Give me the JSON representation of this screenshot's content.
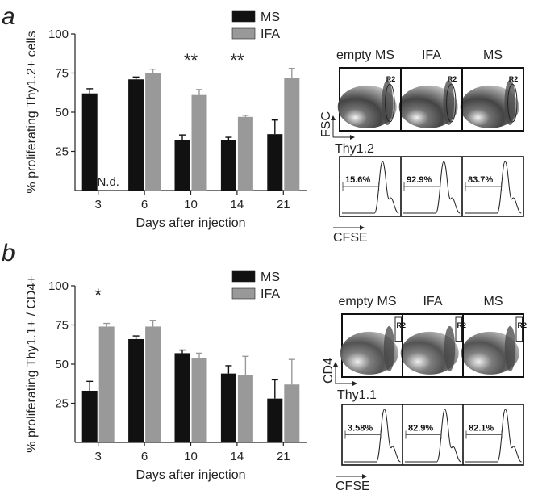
{
  "chart_data": [
    {
      "type": "bar",
      "panel": "a",
      "ylabel": "% proliferating Thy1.2+ cells",
      "xlabel": "Days after injection",
      "categories": [
        "3",
        "6",
        "10",
        "14",
        "21"
      ],
      "ylim": [
        0,
        100
      ],
      "yticks": [
        "25",
        "50",
        "75",
        "100"
      ],
      "series": [
        {
          "name": "MS",
          "color": "#111111",
          "values": [
            62,
            71,
            32,
            32,
            36
          ],
          "errors": [
            3,
            1.5,
            3.5,
            2,
            9
          ]
        },
        {
          "name": "IFA",
          "color": "#999999",
          "values": [
            null,
            75,
            61,
            47,
            72
          ],
          "errors": [
            0,
            2.5,
            3.5,
            1,
            6
          ]
        }
      ],
      "annotations": {
        "missing_label": "N.d.",
        "significance": [
          "",
          "",
          "**",
          "**",
          ""
        ]
      },
      "legend_position": "top-right"
    },
    {
      "type": "bar",
      "panel": "b",
      "ylabel": "% proliferating Thy1.1+ / CD4+",
      "xlabel": "Days after injection",
      "categories": [
        "3",
        "6",
        "10",
        "14",
        "21"
      ],
      "ylim": [
        0,
        100
      ],
      "yticks": [
        "25",
        "50",
        "75",
        "100"
      ],
      "series": [
        {
          "name": "MS",
          "color": "#111111",
          "values": [
            33,
            66,
            57,
            44,
            28
          ],
          "errors": [
            6,
            2,
            2,
            5,
            12
          ]
        },
        {
          "name": "IFA",
          "color": "#999999",
          "values": [
            74,
            74,
            54,
            43,
            37
          ],
          "errors": [
            2,
            4,
            3,
            12,
            16
          ]
        }
      ],
      "annotations": {
        "significance": [
          "*",
          "",
          "",
          "",
          ""
        ]
      },
      "legend_position": "top-right"
    }
  ],
  "flow": {
    "a": {
      "columns": [
        "empty MS",
        "IFA",
        "MS"
      ],
      "gate": "R2",
      "y_axis": "FSC",
      "x_axis": "Thy1.2",
      "histogram_axis": "CFSE",
      "percentages": [
        "15.6%",
        "92.9%",
        "83.7%"
      ]
    },
    "b": {
      "columns": [
        "empty MS",
        "IFA",
        "MS"
      ],
      "gate": "R2",
      "y_axis": "CD4",
      "x_axis": "Thy1.1",
      "histogram_axis": "CFSE",
      "percentages": [
        "3.58%",
        "82.9%",
        "82.1%"
      ]
    }
  }
}
